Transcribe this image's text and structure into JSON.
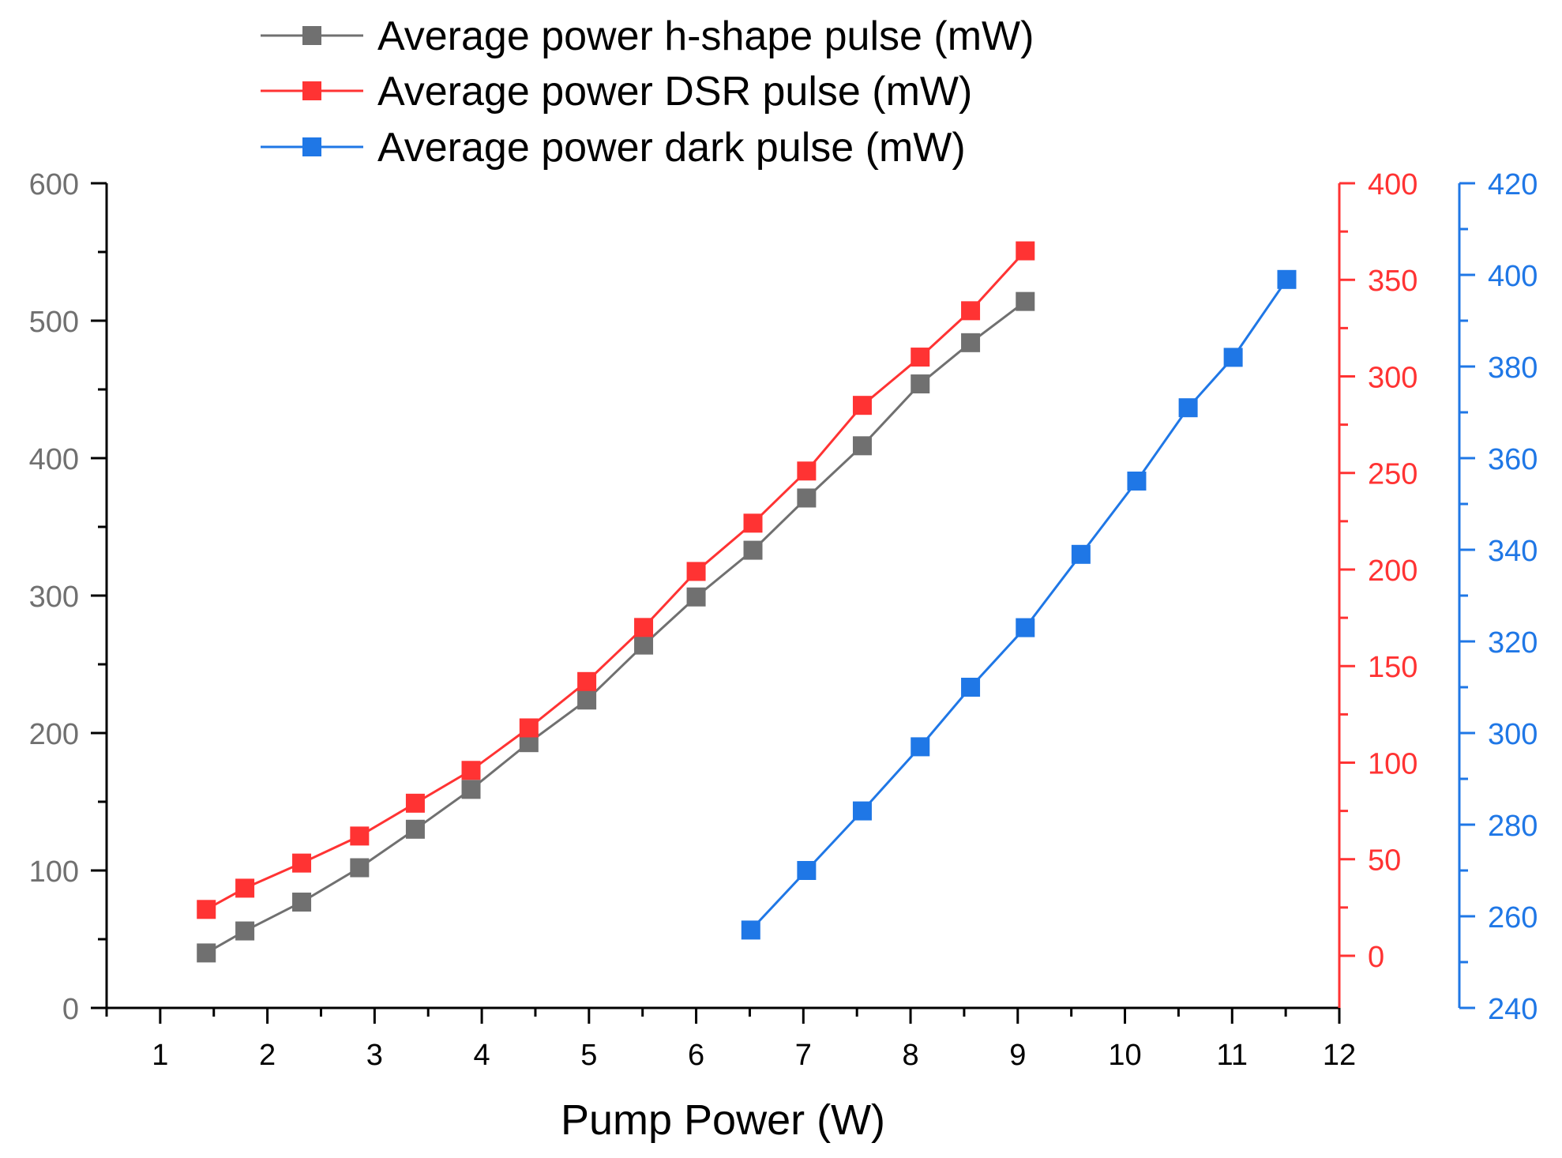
{
  "chart_data": {
    "type": "line",
    "title": "",
    "xlabel": "Pump Power (W)",
    "x_axis": {
      "range": [
        0.5,
        12
      ],
      "ticks": [
        1,
        2,
        3,
        4,
        5,
        6,
        7,
        8,
        9,
        10,
        11,
        12
      ],
      "tick_labels": [
        "1",
        "2",
        "3",
        "4",
        "5",
        "6",
        "7",
        "8",
        "9",
        "10",
        "11",
        "12"
      ]
    },
    "y_axes": [
      {
        "id": "left",
        "color": "#707070",
        "range": [
          0,
          600
        ],
        "ticks": [
          0,
          100,
          200,
          300,
          400,
          500,
          600
        ],
        "tick_labels": [
          "0",
          "100",
          "200",
          "300",
          "400",
          "500",
          "600"
        ]
      },
      {
        "id": "right1",
        "color": "#ff3333",
        "range": [
          -27,
          400
        ],
        "ticks": [
          0,
          50,
          100,
          150,
          200,
          250,
          300,
          350,
          400
        ],
        "tick_labels": [
          "0",
          "50",
          "100",
          "150",
          "200",
          "250",
          "300",
          "350",
          "400"
        ]
      },
      {
        "id": "right2",
        "color": "#1f77e6",
        "range": [
          240,
          420
        ],
        "ticks": [
          240,
          260,
          280,
          300,
          320,
          340,
          360,
          380,
          400,
          420
        ],
        "tick_labels": [
          "240",
          "260",
          "280",
          "300",
          "320",
          "340",
          "360",
          "380",
          "400",
          "420"
        ]
      }
    ],
    "legend_position": "top-center",
    "series": [
      {
        "name": "Average power h-shape pulse (mW)",
        "color": "#707070",
        "axis": "left",
        "x": [
          1.43,
          1.79,
          2.32,
          2.86,
          3.38,
          3.9,
          4.44,
          4.98,
          5.51,
          6.0,
          6.53,
          7.03,
          7.55,
          8.09,
          8.56,
          9.07
        ],
        "y": [
          40,
          56,
          77,
          102,
          130,
          159,
          193,
          224,
          264,
          299,
          333,
          371,
          409,
          454,
          484,
          514
        ]
      },
      {
        "name": "Average power DSR pulse (mW)",
        "color": "#ff3333",
        "axis": "right1",
        "x": [
          1.43,
          1.79,
          2.32,
          2.86,
          3.38,
          3.9,
          4.44,
          4.98,
          5.51,
          6.0,
          6.53,
          7.03,
          7.55,
          8.09,
          8.56,
          9.07
        ],
        "y": [
          24,
          35,
          48,
          62,
          79,
          96,
          118,
          142,
          170,
          199,
          224,
          251,
          285,
          310,
          334,
          365
        ]
      },
      {
        "name": "Average power dark pulse (mW)",
        "color": "#1f77e6",
        "axis": "right2",
        "x": [
          6.51,
          7.03,
          7.55,
          8.09,
          8.56,
          9.07,
          9.59,
          10.11,
          10.59,
          11.01,
          11.51
        ],
        "y": [
          257,
          270,
          283,
          297,
          310,
          323,
          339,
          355,
          371,
          382,
          399
        ]
      }
    ]
  }
}
